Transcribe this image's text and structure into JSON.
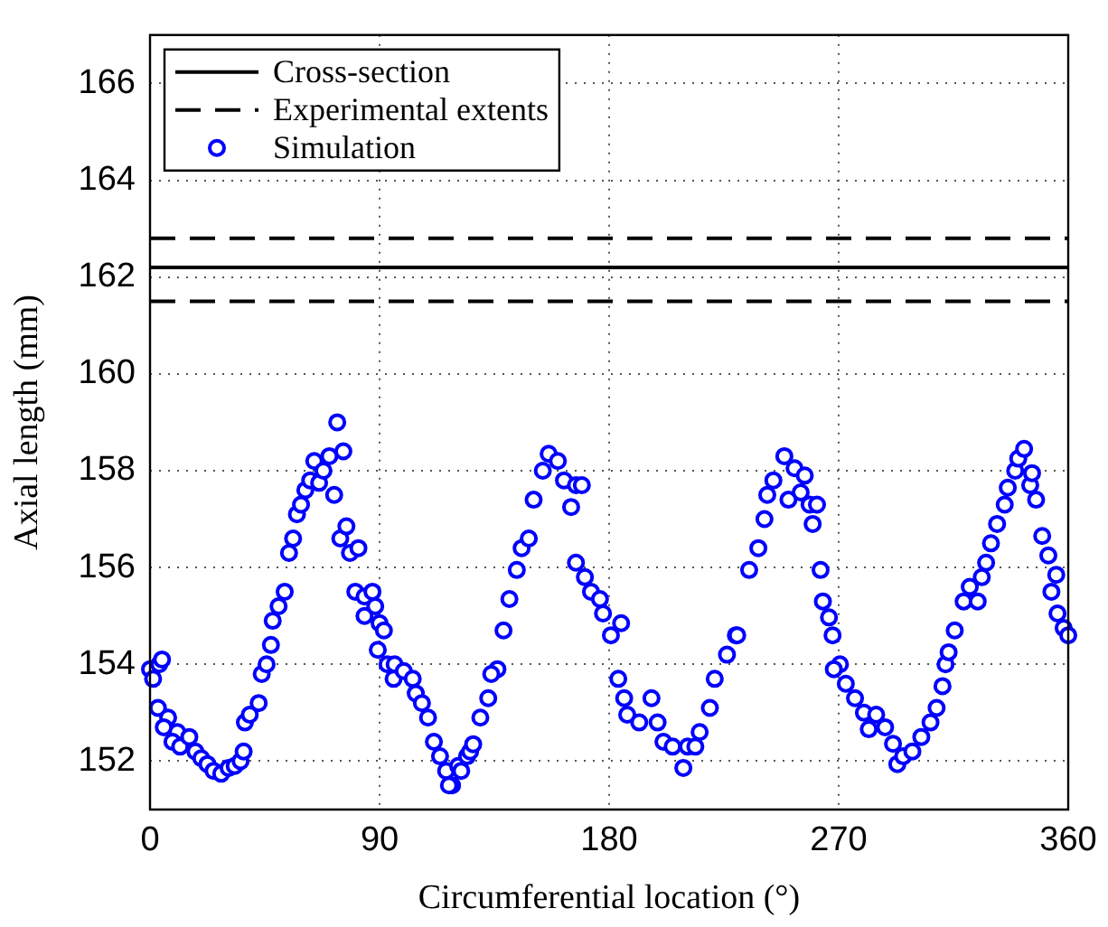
{
  "chart_data": {
    "type": "scatter",
    "xlabel": "Circumferential location (°)",
    "ylabel": "Axial length (mm)",
    "xlim": [
      0,
      360
    ],
    "xticks": [
      0,
      90,
      180,
      270,
      360
    ],
    "ylim": [
      151,
      167
    ],
    "yticks": [
      152,
      154,
      156,
      158,
      160,
      162,
      164,
      166
    ],
    "grid": true,
    "legend": "top left",
    "series": [
      {
        "name": "Cross-section",
        "type": "line",
        "line_style": "solid",
        "marker": "none",
        "color": "#000000",
        "x": [
          0,
          360
        ],
        "values": [
          162.2,
          162.2
        ]
      },
      {
        "name": "Experimental extents",
        "type": "line",
        "line_style": "dashed",
        "marker": "none",
        "color": "#000000",
        "x": [
          0,
          360
        ],
        "values": [
          162.8,
          162.8
        ]
      },
      {
        "type": "line",
        "line_style": "dashed",
        "marker": "none",
        "color": "#000000",
        "x": [
          0,
          360
        ],
        "values": [
          161.5,
          161.5
        ]
      },
      {
        "name": "Simulation",
        "type": "scatter",
        "marker": "circle",
        "color": "#0000ff",
        "x": [
          0,
          1.2,
          3.6,
          4.7,
          3.1,
          7.1,
          5.4,
          10.7,
          8.8,
          11.8,
          15.4,
          17.8,
          20.1,
          22.5,
          24.9,
          27.9,
          30.8,
          33.2,
          35.5,
          36.7,
          37.2,
          39.1,
          42.6,
          43.8,
          45.7,
          47.4,
          48.1,
          50.4,
          52.8,
          54.5,
          56.1,
          57.6,
          59.2,
          60.9,
          62.8,
          64.4,
          66.3,
          68.0,
          70.3,
          73.4,
          72.2,
          75.8,
          74.6,
          77.0,
          78.4,
          81.7,
          80.5,
          84.1,
          84.1,
          87.2,
          88.3,
          90.0,
          91.7,
          89.3,
          93.1,
          95.9,
          95.5,
          99.5,
          103.0,
          104.2,
          106.6,
          109.0,
          111.3,
          113.7,
          116.1,
          118.4,
          117.2,
          120.8,
          122.0,
          124.3,
          125.5,
          126.7,
          129.5,
          132.6,
          136.2,
          133.8,
          138.6,
          140.9,
          143.8,
          145.7,
          148.5,
          150.4,
          154.0,
          156.3,
          159.9,
          162.3,
          165.1,
          167.0,
          169.3,
          167.0,
          170.5,
          172.9,
          176.4,
          177.6,
          180.7,
          184.7,
          183.6,
          185.9,
          187.1,
          191.8,
          196.6,
          199.0,
          201.3,
          204.9,
          209.1,
          210.8,
          213.8,
          215.5,
          219.5,
          221.4,
          226.2,
          229.7,
          230.2,
          234.9,
          238.5,
          240.9,
          242.0,
          244.4,
          248.7,
          252.7,
          256.7,
          255.1,
          250.3,
          258.6,
          261.5,
          259.8,
          262.9,
          263.8,
          266.2,
          267.6,
          270.5,
          268.1,
          272.8,
          276.4,
          279.9,
          284.7,
          281.8,
          288.2,
          291.3,
          293.0,
          295.3,
          298.9,
          302.4,
          306.0,
          308.4,
          310.7,
          311.9,
          313.1,
          315.5,
          319.0,
          321.4,
          324.5,
          326.1,
          327.8,
          329.7,
          332.1,
          335.1,
          336.3,
          339.2,
          340.4,
          342.7,
          345.1,
          345.8,
          347.4,
          349.8,
          352.2,
          355.3,
          353.4,
          355.8,
          358.2,
          360
        ],
        "values": [
          153.9,
          153.7,
          154.0,
          154.1,
          153.1,
          152.9,
          152.7,
          152.6,
          152.4,
          152.3,
          152.5,
          152.2,
          152.06,
          151.94,
          151.8,
          151.74,
          151.86,
          151.9,
          152.0,
          152.2,
          152.8,
          152.96,
          153.2,
          153.8,
          154.0,
          154.4,
          154.9,
          155.2,
          155.5,
          156.3,
          156.6,
          157.1,
          157.3,
          157.6,
          157.8,
          158.2,
          157.75,
          158.0,
          158.3,
          159.0,
          157.5,
          158.4,
          156.6,
          156.85,
          156.3,
          156.4,
          155.5,
          155.4,
          155.0,
          155.5,
          155.2,
          154.85,
          154.7,
          154.3,
          154.0,
          154.0,
          153.7,
          153.86,
          153.7,
          153.4,
          153.2,
          152.9,
          152.4,
          152.1,
          151.8,
          151.5,
          151.5,
          151.9,
          151.8,
          152.1,
          152.2,
          152.35,
          152.9,
          153.3,
          153.9,
          153.8,
          154.7,
          155.35,
          155.95,
          156.4,
          156.6,
          157.4,
          158.0,
          158.35,
          158.2,
          157.8,
          157.25,
          157.7,
          157.7,
          156.1,
          155.8,
          155.5,
          155.35,
          155.05,
          154.6,
          154.85,
          153.7,
          153.3,
          152.96,
          152.8,
          153.3,
          152.8,
          152.4,
          152.3,
          151.86,
          152.3,
          152.3,
          152.6,
          153.1,
          153.7,
          154.2,
          154.6,
          154.6,
          155.95,
          156.4,
          157.0,
          157.5,
          157.8,
          158.3,
          158.05,
          157.9,
          157.55,
          157.4,
          157.3,
          157.3,
          156.9,
          155.95,
          155.3,
          154.97,
          154.6,
          154.0,
          153.9,
          153.6,
          153.3,
          153.0,
          152.96,
          152.66,
          152.7,
          152.36,
          151.94,
          152.1,
          152.2,
          152.5,
          152.8,
          153.1,
          153.55,
          154.0,
          154.25,
          154.7,
          155.3,
          155.6,
          155.3,
          155.8,
          156.1,
          156.5,
          156.9,
          157.3,
          157.65,
          158.0,
          158.25,
          158.45,
          157.7,
          157.95,
          157.4,
          156.65,
          156.25,
          155.85,
          155.5,
          155.05,
          154.75,
          154.6
        ]
      }
    ]
  }
}
